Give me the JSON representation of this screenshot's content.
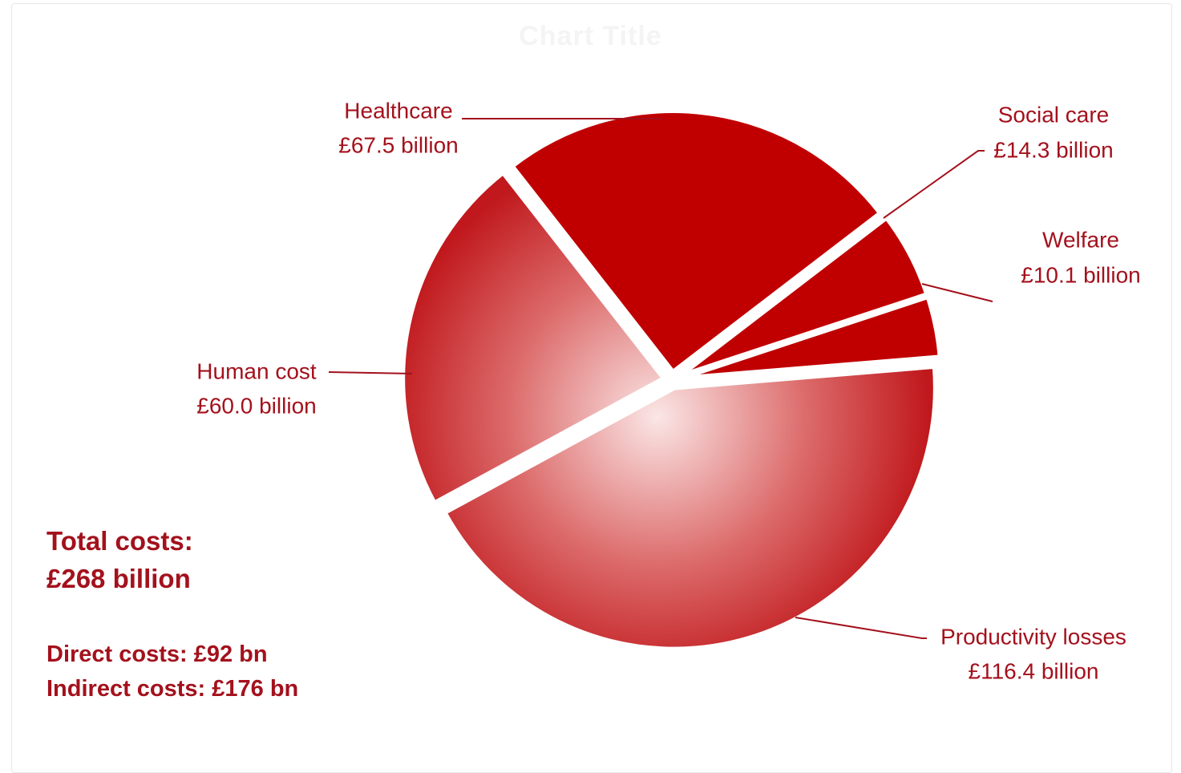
{
  "chart_data": {
    "type": "pie",
    "title": "Chart Title",
    "unit": "£ billion",
    "slices": [
      {
        "name": "Healthcare",
        "value": 67.5,
        "value_label": "£67.5 billion",
        "color": "#c00000",
        "gradient": false
      },
      {
        "name": "Social care",
        "value": 14.3,
        "value_label": "£14.3 billion",
        "color": "#c00000",
        "gradient": false
      },
      {
        "name": "Welfare",
        "value": 10.1,
        "value_label": "£10.1 billion",
        "color": "#c00000",
        "gradient": false
      },
      {
        "name": "Productivity losses",
        "value": 116.4,
        "value_label": "£116.4 billion",
        "color": "#c00000",
        "gradient": true
      },
      {
        "name": "Human cost",
        "value": 60.0,
        "value_label": "£60.0 billion",
        "color": "#c00000",
        "gradient": true
      }
    ],
    "label_color": "#a3111c"
  },
  "summary": {
    "total_label": "Total costs:",
    "total_value": "£268 billion",
    "direct": "Direct costs: £92 bn",
    "indirect": "Indirect costs: £176 bn"
  }
}
